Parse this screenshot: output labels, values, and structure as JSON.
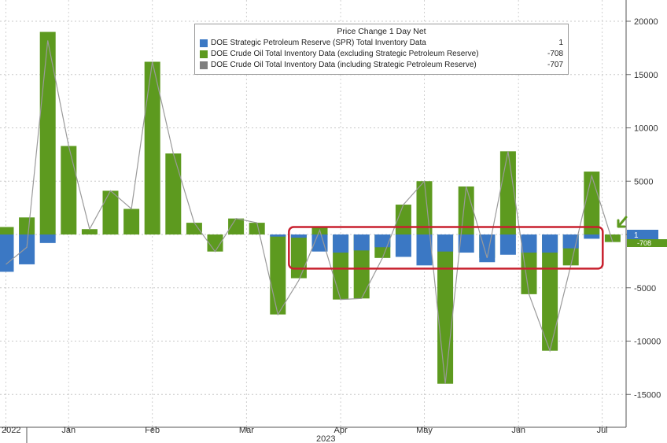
{
  "chart_data": {
    "type": "bar",
    "title": "Price Change 1 Day Net",
    "ylim": [
      -17000,
      22000
    ],
    "yticks": [
      -15000,
      -10000,
      -5000,
      0,
      5000,
      10000,
      15000,
      20000
    ],
    "ytick_labels": [
      "-15000",
      "-10000",
      "-5000",
      "",
      "5000",
      "10000",
      "15000",
      "20000"
    ],
    "x_labels": [
      {
        "label": "2022",
        "index": 0
      },
      {
        "label": "Jan",
        "index": 3
      },
      {
        "label": "Feb",
        "index": 7
      },
      {
        "label": "Mar",
        "index": 11.5
      },
      {
        "label": "Apr",
        "index": 16
      },
      {
        "label": "May",
        "index": 20
      },
      {
        "label": "Jun",
        "index": 24.5
      },
      {
        "label": "Jul",
        "index": 28.5
      }
    ],
    "x_year_label": "2023",
    "series": [
      {
        "name": "DOE Strategic Petroleum Reserve (SPR) Total Inventory Data",
        "color": "#3b78c4",
        "last_value": "1",
        "values": [
          -3500,
          -2800,
          -800,
          0,
          0,
          0,
          0,
          0,
          0,
          0,
          0,
          0,
          0,
          -200,
          -300,
          -1600,
          -1700,
          -1500,
          -1200,
          -2100,
          -2900,
          -1600,
          -1700,
          -2600,
          -1900,
          -1700,
          -1700,
          -1300,
          -400,
          0
        ]
      },
      {
        "name": "DOE Crude Oil Total Inventory Data (excluding Strategic Petroleum Reserve)",
        "color": "#5d9a1f",
        "last_value": "-708",
        "values": [
          700,
          1600,
          19000,
          8300,
          500,
          4100,
          2400,
          16200,
          7600,
          1100,
          -1600,
          1500,
          1100,
          -7500,
          -4100,
          700,
          -6100,
          -6000,
          -2200,
          2800,
          5000,
          -14000,
          4500,
          -2200,
          7800,
          -5600,
          -10900,
          -2900,
          5900,
          -708
        ]
      },
      {
        "name": "DOE Crude Oil Total Inventory Data (including Strategic Petroleum Reserve)",
        "color": "#7f7f7f",
        "last_value": "-707",
        "values": [
          -2800,
          -1200,
          18200,
          8300,
          500,
          4100,
          2400,
          16200,
          7600,
          1100,
          -1600,
          1500,
          1100,
          -7500,
          -4300,
          400,
          -6100,
          -6000,
          -2200,
          2800,
          5000,
          -14000,
          4500,
          -2200,
          7800,
          -5600,
          -10900,
          -2900,
          5500,
          -707
        ]
      }
    ],
    "label_markers": [
      "1",
      "-708"
    ],
    "highlight": {
      "from_index": 13,
      "to_index": 28,
      "color": "#c8202e"
    }
  }
}
